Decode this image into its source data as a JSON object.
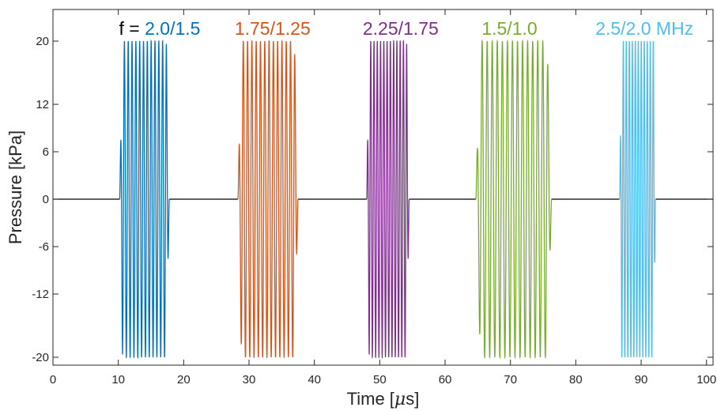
{
  "chart_data": {
    "type": "line",
    "title": "",
    "xlabel_main": "Time [",
    "xlabel_mu": "μ",
    "xlabel_tail": "s]",
    "ylabel": "Pressure [kPa]",
    "xlim": [
      0,
      101
    ],
    "ylim": [
      -21,
      24
    ],
    "x_ticks": [
      0,
      10,
      20,
      30,
      40,
      50,
      60,
      70,
      80,
      90,
      100
    ],
    "x_tick_labels": [
      "0",
      "10",
      "20",
      "30",
      "40",
      "50",
      "60",
      "70",
      "80",
      "90",
      "100"
    ],
    "y_ticks": [
      -20,
      -12,
      -6,
      0,
      6,
      12,
      20
    ],
    "y_tick_labels": [
      "-20",
      "-12",
      "-6",
      "0",
      "6",
      "12",
      "20"
    ],
    "grid": false,
    "baseline_color": "#000000",
    "annotations": [
      {
        "prefix": "f = ",
        "text": "2.0/1.5",
        "color": "#0072BD",
        "x": 10.1,
        "y": 21.6
      },
      {
        "prefix": "",
        "text": "1.75/1.25",
        "color": "#D95319",
        "x": 27.8,
        "y": 21.6
      },
      {
        "prefix": "",
        "text": "2.25/1.75",
        "color": "#7E2F8E",
        "x": 47.4,
        "y": 21.6
      },
      {
        "prefix": "",
        "text": "1.5/1.0",
        "color": "#77AC30",
        "x": 65.6,
        "y": 21.6
      },
      {
        "prefix": "",
        "text": "2.5/2.0 MHz",
        "color": "#4DBEEE",
        "x": 83.0,
        "y": 21.6
      }
    ],
    "series": [
      {
        "start": 10.2,
        "end": 17.8,
        "cycles": 13,
        "amplitude": 20,
        "color": "#0072BD"
      },
      {
        "start": 28.3,
        "end": 37.5,
        "cycles": 14,
        "amplitude": 20,
        "color": "#D95319"
      },
      {
        "start": 48.0,
        "end": 54.5,
        "cycles": 13,
        "amplitude": 20,
        "color": "#7E2F8E"
      },
      {
        "start": 64.7,
        "end": 76.3,
        "cycles": 15,
        "amplitude": 20,
        "color": "#77AC30"
      },
      {
        "start": 86.7,
        "end": 92.2,
        "cycles": 12,
        "amplitude": 20,
        "color": "#4DBEEE"
      }
    ]
  }
}
